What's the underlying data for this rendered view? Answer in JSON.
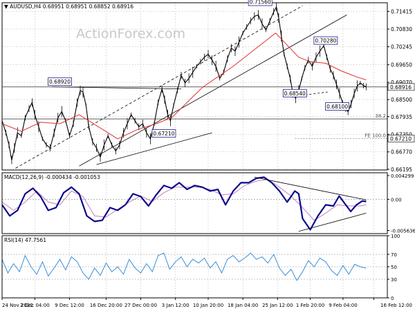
{
  "chart_data": {
    "type": "line",
    "title": "AUDUSD,H4",
    "ohlc_values": [
      "0.68951",
      "0.68951",
      "0.68852",
      "0.68916"
    ],
    "watermark": "ActionForex.com",
    "colors": {
      "price": "#000000",
      "ema": "#e03030",
      "macd": "#0a0a8c",
      "signal": "#c080c0",
      "rsi": "#3a8fd8",
      "box_border": "#1a1a8c",
      "grid": "#888888"
    },
    "price_panel": {
      "ylim": [
        0.6617,
        0.717
      ],
      "y_ticks": [
        "0.71415",
        "0.70830",
        "0.70245",
        "0.69650",
        "0.69070",
        "0.68500",
        "0.67935",
        "0.67350",
        "0.66770",
        "0.66195"
      ],
      "y_tick_values": [
        0.71415,
        0.7083,
        0.70245,
        0.6965,
        0.6907,
        0.685,
        0.67935,
        0.6735,
        0.6677,
        0.66195
      ],
      "last_price_label": "0.68916",
      "last_price": 0.68916,
      "level_label": "0.67210",
      "level": 0.6721,
      "hlines": [
        0.68916,
        0.6786
      ],
      "fib_labels": [
        {
          "text": "38.2",
          "y": 0.6786
        },
        {
          "text": "FE 100.0",
          "y": 0.6721
        }
      ],
      "annotations": [
        {
          "text": "0.71560",
          "x": 0.67,
          "y": 0.7156
        },
        {
          "text": "0.70280",
          "x": 0.84,
          "y": 0.7028
        },
        {
          "text": "0.68920",
          "x": 0.15,
          "y": 0.6892
        },
        {
          "text": "0.68540",
          "x": 0.76,
          "y": 0.6854
        },
        {
          "text": "0.68100",
          "x": 0.87,
          "y": 0.681
        },
        {
          "text": "0.67210",
          "x": 0.42,
          "y": 0.6721
        }
      ],
      "price_series": [
        [
          0.0,
          0.678
        ],
        [
          0.01,
          0.674
        ],
        [
          0.018,
          0.67
        ],
        [
          0.025,
          0.665
        ],
        [
          0.032,
          0.669
        ],
        [
          0.04,
          0.674
        ],
        [
          0.05,
          0.673
        ],
        [
          0.06,
          0.679
        ],
        [
          0.07,
          0.682
        ],
        [
          0.078,
          0.684
        ],
        [
          0.085,
          0.68
        ],
        [
          0.095,
          0.676
        ],
        [
          0.105,
          0.672
        ],
        [
          0.115,
          0.67
        ],
        [
          0.125,
          0.669
        ],
        [
          0.135,
          0.674
        ],
        [
          0.145,
          0.679
        ],
        [
          0.155,
          0.681
        ],
        [
          0.165,
          0.678
        ],
        [
          0.175,
          0.673
        ],
        [
          0.185,
          0.677
        ],
        [
          0.195,
          0.684
        ],
        [
          0.203,
          0.688
        ],
        [
          0.21,
          0.6875
        ],
        [
          0.218,
          0.683
        ],
        [
          0.225,
          0.676
        ],
        [
          0.235,
          0.671
        ],
        [
          0.245,
          0.669
        ],
        [
          0.255,
          0.666
        ],
        [
          0.265,
          0.67
        ],
        [
          0.275,
          0.673
        ],
        [
          0.285,
          0.67
        ],
        [
          0.295,
          0.668
        ],
        [
          0.305,
          0.67
        ],
        [
          0.315,
          0.674
        ],
        [
          0.325,
          0.677
        ],
        [
          0.335,
          0.68
        ],
        [
          0.345,
          0.678
        ],
        [
          0.355,
          0.676
        ],
        [
          0.365,
          0.677
        ],
        [
          0.375,
          0.674
        ],
        [
          0.385,
          0.672
        ],
        [
          0.395,
          0.677
        ],
        [
          0.405,
          0.684
        ],
        [
          0.415,
          0.6885
        ],
        [
          0.422,
          0.685
        ],
        [
          0.43,
          0.68
        ],
        [
          0.437,
          0.678
        ],
        [
          0.445,
          0.683
        ],
        [
          0.455,
          0.688
        ],
        [
          0.465,
          0.693
        ],
        [
          0.475,
          0.6905
        ],
        [
          0.485,
          0.692
        ],
        [
          0.495,
          0.694
        ],
        [
          0.505,
          0.696
        ],
        [
          0.515,
          0.6975
        ],
        [
          0.525,
          0.699
        ],
        [
          0.535,
          0.7
        ],
        [
          0.545,
          0.698
        ],
        [
          0.555,
          0.696
        ],
        [
          0.565,
          0.692
        ],
        [
          0.575,
          0.694
        ],
        [
          0.585,
          0.6985
        ],
        [
          0.595,
          0.702
        ],
        [
          0.605,
          0.701
        ],
        [
          0.615,
          0.704
        ],
        [
          0.625,
          0.707
        ],
        [
          0.635,
          0.709
        ],
        [
          0.645,
          0.711
        ],
        [
          0.655,
          0.7125
        ],
        [
          0.665,
          0.713
        ],
        [
          0.675,
          0.71
        ],
        [
          0.685,
          0.708
        ],
        [
          0.695,
          0.711
        ],
        [
          0.705,
          0.714
        ],
        [
          0.712,
          0.7156
        ],
        [
          0.718,
          0.712
        ],
        [
          0.725,
          0.706
        ],
        [
          0.732,
          0.7
        ],
        [
          0.74,
          0.696
        ],
        [
          0.748,
          0.692
        ],
        [
          0.755,
          0.687
        ],
        [
          0.762,
          0.6854
        ],
        [
          0.77,
          0.688
        ],
        [
          0.778,
          0.692
        ],
        [
          0.786,
          0.6955
        ],
        [
          0.795,
          0.698
        ],
        [
          0.805,
          0.696
        ],
        [
          0.815,
          0.699
        ],
        [
          0.825,
          0.701
        ],
        [
          0.835,
          0.7028
        ],
        [
          0.843,
          0.699
        ],
        [
          0.852,
          0.695
        ],
        [
          0.86,
          0.693
        ],
        [
          0.868,
          0.69
        ],
        [
          0.876,
          0.687
        ],
        [
          0.884,
          0.684
        ],
        [
          0.892,
          0.6818
        ],
        [
          0.898,
          0.681
        ],
        [
          0.906,
          0.6835
        ],
        [
          0.914,
          0.687
        ],
        [
          0.922,
          0.6895
        ],
        [
          0.93,
          0.6905
        ],
        [
          0.938,
          0.6896
        ],
        [
          0.945,
          0.6892
        ]
      ],
      "ema_series": [
        [
          0.0,
          0.677
        ],
        [
          0.05,
          0.6745
        ],
        [
          0.1,
          0.6775
        ],
        [
          0.15,
          0.677
        ],
        [
          0.2,
          0.68
        ],
        [
          0.25,
          0.676
        ],
        [
          0.3,
          0.672
        ],
        [
          0.35,
          0.675
        ],
        [
          0.4,
          0.677
        ],
        [
          0.44,
          0.679
        ],
        [
          0.48,
          0.684
        ],
        [
          0.52,
          0.689
        ],
        [
          0.56,
          0.6925
        ],
        [
          0.6,
          0.696
        ],
        [
          0.64,
          0.7
        ],
        [
          0.68,
          0.704
        ],
        [
          0.71,
          0.707
        ],
        [
          0.74,
          0.703
        ],
        [
          0.77,
          0.699
        ],
        [
          0.8,
          0.6975
        ],
        [
          0.84,
          0.697
        ],
        [
          0.88,
          0.6945
        ],
        [
          0.92,
          0.6925
        ],
        [
          0.945,
          0.6915
        ]
      ]
    },
    "macd_panel": {
      "label": "MACD(12,26,9) -0.000434 -0.001053",
      "ylim": [
        -0.0062,
        0.0048
      ],
      "y_ticks": [
        "0.004299",
        "0.00",
        "-0.005636"
      ],
      "y_tick_values": [
        0.004299,
        0.0,
        -0.005636
      ],
      "macd_series": [
        [
          0.0,
          -0.001
        ],
        [
          0.02,
          -0.003
        ],
        [
          0.04,
          -0.002
        ],
        [
          0.06,
          0.001
        ],
        [
          0.08,
          0.002
        ],
        [
          0.1,
          0.0005
        ],
        [
          0.12,
          -0.002
        ],
        [
          0.14,
          -0.0015
        ],
        [
          0.16,
          0.0012
        ],
        [
          0.18,
          0.0022
        ],
        [
          0.2,
          0.001
        ],
        [
          0.22,
          -0.003
        ],
        [
          0.24,
          -0.004
        ],
        [
          0.26,
          -0.0038
        ],
        [
          0.28,
          -0.0015
        ],
        [
          0.3,
          -0.002
        ],
        [
          0.32,
          -0.001
        ],
        [
          0.34,
          0.001
        ],
        [
          0.36,
          0.0005
        ],
        [
          0.38,
          -0.0012
        ],
        [
          0.4,
          0.0008
        ],
        [
          0.42,
          0.0025
        ],
        [
          0.44,
          0.002
        ],
        [
          0.46,
          0.003
        ],
        [
          0.48,
          0.0018
        ],
        [
          0.5,
          0.0025
        ],
        [
          0.52,
          0.0022
        ],
        [
          0.54,
          0.0015
        ],
        [
          0.56,
          0.0018
        ],
        [
          0.58,
          -0.001
        ],
        [
          0.6,
          0.0015
        ],
        [
          0.62,
          0.003
        ],
        [
          0.64,
          0.003
        ],
        [
          0.66,
          0.0038
        ],
        [
          0.68,
          0.004
        ],
        [
          0.7,
          0.003
        ],
        [
          0.72,
          0.0015
        ],
        [
          0.74,
          -0.0005
        ],
        [
          0.76,
          0.0015
        ],
        [
          0.77,
          0.001
        ],
        [
          0.78,
          -0.0035
        ],
        [
          0.8,
          -0.0055
        ],
        [
          0.82,
          -0.003
        ],
        [
          0.84,
          -0.001
        ],
        [
          0.86,
          -0.0012
        ],
        [
          0.875,
          0.0006
        ],
        [
          0.89,
          -0.0008
        ],
        [
          0.905,
          -0.0022
        ],
        [
          0.92,
          -0.001
        ],
        [
          0.935,
          -0.0003
        ],
        [
          0.945,
          -0.0004
        ]
      ],
      "signal_series": [
        [
          0.0,
          -0.0005
        ],
        [
          0.03,
          -0.002
        ],
        [
          0.06,
          -0.0005
        ],
        [
          0.09,
          0.0015
        ],
        [
          0.12,
          -0.0005
        ],
        [
          0.15,
          -0.001
        ],
        [
          0.18,
          0.0015
        ],
        [
          0.21,
          0.0005
        ],
        [
          0.24,
          -0.003
        ],
        [
          0.27,
          -0.0032
        ],
        [
          0.3,
          -0.0018
        ],
        [
          0.33,
          -0.0005
        ],
        [
          0.36,
          0.0006
        ],
        [
          0.39,
          -0.0004
        ],
        [
          0.42,
          0.0012
        ],
        [
          0.45,
          0.0022
        ],
        [
          0.48,
          0.0022
        ],
        [
          0.51,
          0.0022
        ],
        [
          0.54,
          0.0018
        ],
        [
          0.57,
          0.0008
        ],
        [
          0.6,
          0.001
        ],
        [
          0.63,
          0.0025
        ],
        [
          0.66,
          0.0033
        ],
        [
          0.69,
          0.0036
        ],
        [
          0.72,
          0.0022
        ],
        [
          0.75,
          0.0006
        ],
        [
          0.78,
          -0.0015
        ],
        [
          0.81,
          -0.0038
        ],
        [
          0.84,
          -0.0025
        ],
        [
          0.87,
          -0.001
        ],
        [
          0.9,
          -0.0012
        ],
        [
          0.93,
          -0.0012
        ],
        [
          0.945,
          -0.001
        ]
      ],
      "trendlines": [
        [
          [
            0.655,
            0.004
          ],
          [
            0.945,
            -0.0001
          ]
        ],
        [
          [
            0.77,
            -0.0058
          ],
          [
            0.945,
            -0.0025
          ]
        ]
      ]
    },
    "rsi_panel": {
      "label": "RSI(14) 47.7561",
      "ylim": [
        0,
        100
      ],
      "y_ticks": [
        "100",
        "70",
        "50",
        "30",
        "0"
      ],
      "y_tick_values": [
        100,
        70,
        50,
        30,
        0
      ],
      "dashed_levels": [
        70,
        50,
        30
      ],
      "rsi_series": [
        [
          0.0,
          62
        ],
        [
          0.015,
          40
        ],
        [
          0.03,
          55
        ],
        [
          0.045,
          42
        ],
        [
          0.06,
          68
        ],
        [
          0.075,
          50
        ],
        [
          0.09,
          38
        ],
        [
          0.105,
          58
        ],
        [
          0.12,
          35
        ],
        [
          0.135,
          48
        ],
        [
          0.15,
          62
        ],
        [
          0.165,
          45
        ],
        [
          0.18,
          66
        ],
        [
          0.195,
          58
        ],
        [
          0.21,
          40
        ],
        [
          0.225,
          30
        ],
        [
          0.24,
          48
        ],
        [
          0.255,
          36
        ],
        [
          0.27,
          56
        ],
        [
          0.285,
          42
        ],
        [
          0.3,
          50
        ],
        [
          0.315,
          38
        ],
        [
          0.33,
          62
        ],
        [
          0.345,
          48
        ],
        [
          0.36,
          40
        ],
        [
          0.375,
          55
        ],
        [
          0.39,
          42
        ],
        [
          0.405,
          68
        ],
        [
          0.42,
          72
        ],
        [
          0.435,
          46
        ],
        [
          0.45,
          58
        ],
        [
          0.465,
          66
        ],
        [
          0.48,
          50
        ],
        [
          0.495,
          62
        ],
        [
          0.51,
          56
        ],
        [
          0.525,
          64
        ],
        [
          0.54,
          48
        ],
        [
          0.555,
          58
        ],
        [
          0.57,
          40
        ],
        [
          0.585,
          62
        ],
        [
          0.6,
          68
        ],
        [
          0.615,
          58
        ],
        [
          0.63,
          64
        ],
        [
          0.645,
          72
        ],
        [
          0.66,
          62
        ],
        [
          0.675,
          66
        ],
        [
          0.69,
          56
        ],
        [
          0.705,
          70
        ],
        [
          0.72,
          48
        ],
        [
          0.735,
          36
        ],
        [
          0.75,
          46
        ],
        [
          0.765,
          28
        ],
        [
          0.78,
          42
        ],
        [
          0.795,
          60
        ],
        [
          0.81,
          50
        ],
        [
          0.825,
          64
        ],
        [
          0.84,
          58
        ],
        [
          0.855,
          44
        ],
        [
          0.87,
          36
        ],
        [
          0.885,
          52
        ],
        [
          0.9,
          38
        ],
        [
          0.915,
          54
        ],
        [
          0.93,
          50
        ],
        [
          0.945,
          47.7561
        ]
      ]
    },
    "x_tick_labels": [
      {
        "text": "24 Nov 2022",
        "x": 0.0
      },
      {
        "text": "2 Dec 04:00",
        "x": 0.085
      },
      {
        "text": "9 Dec 12:00",
        "x": 0.175
      },
      {
        "text": "16 Dec 20:00",
        "x": 0.27
      },
      {
        "text": "27 Dec 00:00",
        "x": 0.36
      },
      {
        "text": "3 Jan 12:00",
        "x": 0.45
      },
      {
        "text": "10 Jan 20:00",
        "x": 0.535
      },
      {
        "text": "18 Jan 04:00",
        "x": 0.625
      },
      {
        "text": "25 Jan 12:00",
        "x": 0.715
      },
      {
        "text": "1 Feb 20:00",
        "x": 0.8
      },
      {
        "text": "9 Feb 04:00",
        "x": 0.885
      },
      {
        "text": "16 Feb 12:00",
        "x": 0.965
      }
    ]
  }
}
